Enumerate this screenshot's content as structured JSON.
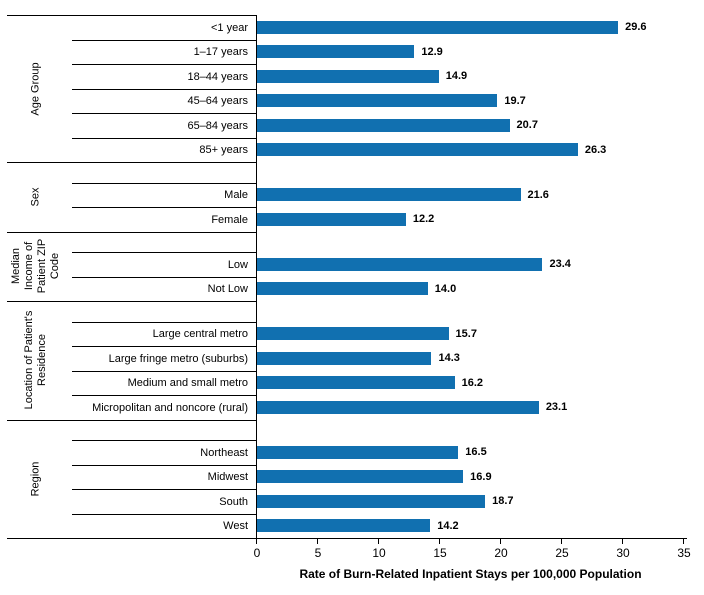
{
  "figure": {
    "background": "#ffffff",
    "bar_color": "#1170b0",
    "line_color": "#000000",
    "text_color": "#000000"
  },
  "chart_data": {
    "type": "bar",
    "orientation": "horizontal",
    "title": "",
    "xlabel": "Rate of Burn-Related Inpatient Stays per 100,000 Population",
    "ylabel": "",
    "xlim": [
      0,
      35
    ],
    "xticks": [
      0,
      5,
      10,
      15,
      20,
      25,
      30,
      35
    ],
    "grid": "off",
    "value_labels_shown": true,
    "groups": [
      {
        "label": "Age Group",
        "label_lines": [
          "Age Group"
        ],
        "rows": [
          {
            "label": "<1 year",
            "value": 29.6,
            "display": "29.6"
          },
          {
            "label": "1–17 years",
            "value": 12.9,
            "display": "12.9"
          },
          {
            "label": "18–44 years",
            "value": 14.9,
            "display": "14.9"
          },
          {
            "label": "45–64 years",
            "value": 19.7,
            "display": "19.7"
          },
          {
            "label": "65–84 years",
            "value": 20.7,
            "display": "20.7"
          },
          {
            "label": "85+ years",
            "value": 26.3,
            "display": "26.3"
          }
        ]
      },
      {
        "label": "Sex",
        "label_lines": [
          "Sex"
        ],
        "rows": [
          {
            "label": "Male",
            "value": 21.6,
            "display": "21.6"
          },
          {
            "label": "Female",
            "value": 12.2,
            "display": "12.2"
          }
        ]
      },
      {
        "label": "Median Income of Patient ZIP Code",
        "label_lines": [
          "Median",
          "Income of",
          "Patient ZIP",
          "Code"
        ],
        "rows": [
          {
            "label": "Low",
            "value": 23.4,
            "display": "23.4"
          },
          {
            "label": "Not Low",
            "value": 14.0,
            "display": "14.0"
          }
        ]
      },
      {
        "label": "Location of Patient's Residence",
        "label_lines": [
          "Location of Patient's",
          "Residence"
        ],
        "rows": [
          {
            "label": "Large central metro",
            "value": 15.7,
            "display": "15.7"
          },
          {
            "label": "Large fringe metro (suburbs)",
            "value": 14.3,
            "display": "14.3"
          },
          {
            "label": "Medium and small metro",
            "value": 16.2,
            "display": "16.2"
          },
          {
            "label": "Micropolitan and noncore (rural)",
            "value": 23.1,
            "display": "23.1"
          }
        ]
      },
      {
        "label": "Region",
        "label_lines": [
          "Region"
        ],
        "rows": [
          {
            "label": "Northeast",
            "value": 16.5,
            "display": "16.5"
          },
          {
            "label": "Midwest",
            "value": 16.9,
            "display": "16.9"
          },
          {
            "label": "South",
            "value": 18.7,
            "display": "18.7"
          },
          {
            "label": "West",
            "value": 14.2,
            "display": "14.2"
          }
        ]
      }
    ]
  }
}
